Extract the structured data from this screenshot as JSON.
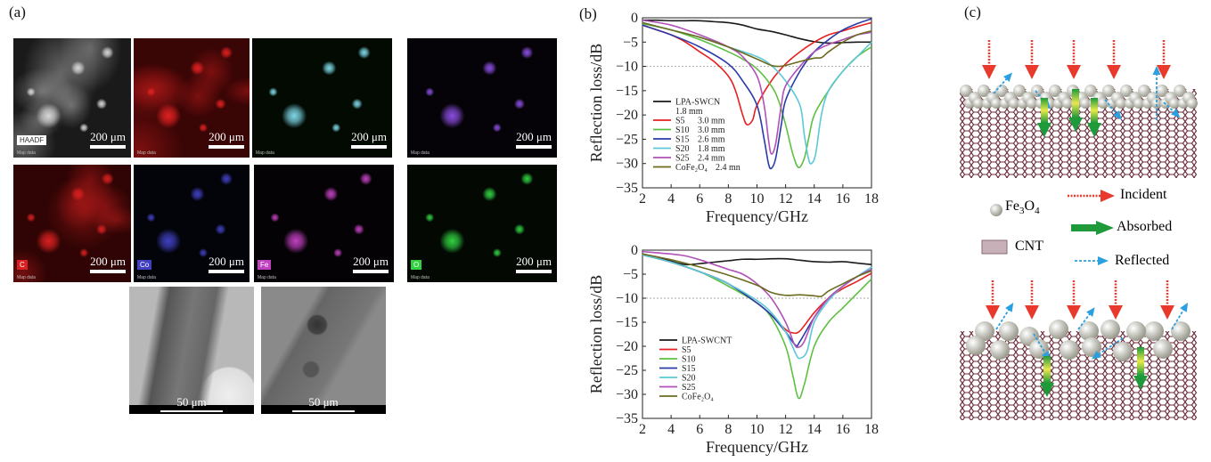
{
  "panel_a": {
    "label": "(a)",
    "maps": [
      {
        "tag": "HAADF",
        "scale": "200 μm",
        "meta": "Map data",
        "bg": "#1a1a1a",
        "color": "#d8d8d8"
      },
      {
        "tag": "",
        "scale": "200 μm",
        "meta": "Map data",
        "bg": "#3a0505",
        "color": "#e02020"
      },
      {
        "tag": "",
        "scale": "200 μm",
        "meta": "Map data",
        "bg": "#020a02",
        "color": "#7fd8e8"
      },
      {
        "tag": "",
        "scale": "200 μm",
        "meta": "Map data",
        "bg": "#050308",
        "color": "#8a4de0"
      },
      {
        "tag": "C",
        "scale": "200 μm",
        "meta": "Map data",
        "bg": "#300404",
        "color": "#d82020"
      },
      {
        "tag": "Co",
        "scale": "200 μm",
        "meta": "Map data",
        "bg": "#03030a",
        "color": "#4040c0"
      },
      {
        "tag": "Fe",
        "scale": "200 μm",
        "meta": "Map data",
        "bg": "#050205",
        "color": "#c040c0"
      },
      {
        "tag": "O",
        "scale": "200 μm",
        "meta": "Map data",
        "bg": "#030803",
        "color": "#30d040"
      }
    ],
    "tem": [
      {
        "scale": "50 μm"
      },
      {
        "scale": "50 μm"
      }
    ]
  },
  "panel_b": {
    "label": "(b)"
  },
  "panel_c": {
    "label": "(c)",
    "legend": {
      "fe3o4": "Fe3O4",
      "cnt": "CNT",
      "incident": "Incident",
      "absorbed": "Absorbed",
      "reflected": "Reflected"
    },
    "colors": {
      "incident": "#e8392c",
      "absorbed": "#1e9a3a",
      "reflected": "#2aa0e0"
    }
  },
  "chart_data": [
    {
      "type": "line",
      "xlabel": "Frequency/GHz",
      "ylabel": "Reflection loss/dB",
      "xlim": [
        2,
        18
      ],
      "ylim": [
        -35,
        0
      ],
      "xticks": [
        2,
        4,
        6,
        8,
        10,
        12,
        14,
        16,
        18
      ],
      "yticks": [
        0,
        -5,
        -10,
        -15,
        -20,
        -25,
        -30,
        -35
      ],
      "reference_line": -10,
      "legend_position": "lower-left",
      "series": [
        {
          "name": "LPA-SWCN",
          "thickness": "1.8 mm",
          "color": "#1a1a1a",
          "x": [
            2,
            3,
            4,
            5,
            6,
            7,
            8,
            9,
            10,
            11,
            12,
            13,
            14,
            15,
            16,
            17,
            18
          ],
          "y": [
            -0.5,
            -0.5,
            -0.6,
            -0.6,
            -0.6,
            -0.8,
            -1.0,
            -1.5,
            -2.3,
            -2.8,
            -3.5,
            -4.3,
            -4.9,
            -5.2,
            -5.1,
            -5.0,
            -5.0
          ]
        },
        {
          "name": "S5",
          "thickness": "3.0 mm",
          "color": "#e82020",
          "x": [
            2,
            3,
            4,
            5,
            6,
            7,
            8,
            8.5,
            9,
            9.3,
            9.7,
            10,
            11,
            12,
            13,
            14,
            15,
            16,
            17,
            18
          ],
          "y": [
            -1.5,
            -2.5,
            -3.5,
            -5,
            -7,
            -9,
            -12,
            -15,
            -20,
            -22,
            -21,
            -18,
            -13,
            -9.5,
            -7,
            -5,
            -3.5,
            -2.7,
            -1.8,
            -1
          ]
        },
        {
          "name": "S10",
          "thickness": "3.0 mm",
          "color": "#5cc040",
          "x": [
            2,
            4,
            6,
            8,
            9,
            10,
            11,
            11.5,
            12,
            12.5,
            12.9,
            13.3,
            13.6,
            14,
            15,
            16,
            17,
            18
          ],
          "y": [
            -1.2,
            -2.5,
            -4.5,
            -7,
            -8.5,
            -10.5,
            -14,
            -17,
            -22,
            -28,
            -30.8,
            -29,
            -25,
            -20,
            -15,
            -11,
            -8,
            -6
          ]
        },
        {
          "name": "S15",
          "thickness": "2.6 mm",
          "color": "#2a3aa8",
          "x": [
            2,
            4,
            6,
            8,
            9,
            10,
            10.5,
            10.8,
            11,
            11.3,
            11.7,
            12,
            13,
            14,
            15,
            16,
            17,
            18
          ],
          "y": [
            -1.5,
            -3.5,
            -6,
            -9.5,
            -13,
            -18,
            -25,
            -30,
            -31,
            -29,
            -22,
            -17,
            -11,
            -7,
            -4.5,
            -2.5,
            -1.2,
            -0.2
          ]
        },
        {
          "name": "S20",
          "thickness": "1.8 mm",
          "color": "#5cc8d8",
          "x": [
            2,
            4,
            6,
            8,
            10,
            11,
            12,
            13,
            13.3,
            13.6,
            13.8,
            14.1,
            14.5,
            15,
            16,
            17,
            18
          ],
          "y": [
            -1,
            -2.5,
            -4,
            -6,
            -8,
            -9.8,
            -13,
            -18,
            -24,
            -29,
            -30,
            -28,
            -20,
            -15,
            -11,
            -8,
            -5
          ]
        },
        {
          "name": "S25",
          "thickness": "2.4 mm",
          "color": "#b050b8",
          "x": [
            2,
            4,
            6,
            8,
            9,
            10,
            10.5,
            10.8,
            11,
            11.3,
            11.7,
            12,
            13,
            14,
            15,
            16,
            17,
            18
          ],
          "y": [
            -0.5,
            -1.5,
            -3.5,
            -6,
            -8,
            -12,
            -18,
            -25,
            -28,
            -26,
            -18,
            -14,
            -10,
            -7,
            -5.5,
            -4.5,
            -3.5,
            -3
          ]
        },
        {
          "name": "CoFe2O4",
          "thickness": "2.4 mn",
          "color": "#6b6a1e",
          "x": [
            2,
            4,
            6,
            8,
            10,
            11,
            11.5,
            12,
            13,
            14,
            14.5,
            15,
            16,
            17,
            18
          ],
          "y": [
            -1,
            -2.5,
            -4,
            -6,
            -8.5,
            -9.8,
            -10,
            -9.8,
            -9,
            -8.3,
            -8.2,
            -7,
            -5,
            -3.5,
            -2.7
          ]
        }
      ]
    },
    {
      "type": "line",
      "xlabel": "Frequency/GHz",
      "ylabel": "Reflection loss/dB",
      "xlim": [
        2,
        18
      ],
      "ylim": [
        -35,
        0
      ],
      "xticks": [
        2,
        4,
        6,
        8,
        10,
        12,
        14,
        16,
        18
      ],
      "yticks": [
        0,
        -5,
        -10,
        -15,
        -20,
        -25,
        -30,
        -35
      ],
      "reference_line": -10,
      "legend_position": "lower-left",
      "series": [
        {
          "name": "LPA-SWCNT",
          "color": "#1a1a1a",
          "x": [
            2,
            3,
            4,
            5,
            6,
            7,
            8,
            9,
            10,
            11,
            12,
            13,
            14,
            15,
            16,
            17,
            18
          ],
          "y": [
            -0.8,
            -1.5,
            -2.3,
            -3,
            -2.8,
            -2.5,
            -2.2,
            -1.9,
            -1.9,
            -1.8,
            -1.8,
            -2.1,
            -2.4,
            -2.5,
            -2.4,
            -2.7,
            -3
          ]
        },
        {
          "name": "S5",
          "color": "#e82020",
          "x": [
            2,
            4,
            6,
            8,
            10,
            11,
            12,
            12.5,
            13,
            14,
            15,
            16,
            17,
            18
          ],
          "y": [
            -0.8,
            -2.5,
            -4.5,
            -7,
            -11,
            -13.5,
            -16.5,
            -17.2,
            -16.8,
            -13,
            -10,
            -8,
            -6.5,
            -4.8
          ]
        },
        {
          "name": "S10",
          "color": "#5cc040",
          "x": [
            2,
            4,
            6,
            8,
            10,
            11,
            12,
            12.5,
            12.9,
            13.3,
            14,
            15,
            16,
            17,
            18
          ],
          "y": [
            -1,
            -2.5,
            -4.5,
            -7.5,
            -11,
            -14,
            -20,
            -26,
            -30.8,
            -28,
            -20,
            -15,
            -12,
            -9,
            -6
          ]
        },
        {
          "name": "S15",
          "color": "#2a3aa8",
          "x": [
            2,
            4,
            6,
            8,
            10,
            11,
            12,
            12.7,
            13,
            14,
            15,
            16,
            17,
            18
          ],
          "y": [
            -1,
            -2.5,
            -4.5,
            -7,
            -11,
            -13.5,
            -17,
            -19.8,
            -19,
            -14,
            -10,
            -7.5,
            -5.5,
            -4
          ]
        },
        {
          "name": "S20",
          "color": "#5cc8d8",
          "x": [
            2,
            4,
            6,
            8,
            10,
            11,
            12,
            12.7,
            13,
            13.5,
            14,
            15,
            16,
            17,
            18
          ],
          "y": [
            -1,
            -2.5,
            -4.5,
            -7,
            -10.5,
            -13,
            -17,
            -21.5,
            -22.5,
            -21,
            -15,
            -10.5,
            -7.5,
            -5.5,
            -3.5
          ]
        },
        {
          "name": "S25",
          "color": "#b050b8",
          "x": [
            2,
            4,
            5,
            6,
            7,
            8,
            9,
            10,
            11,
            12,
            12.6,
            12.9,
            13.3,
            14,
            15,
            16,
            17,
            18
          ],
          "y": [
            -0.3,
            -0.8,
            -1.2,
            -2,
            -3,
            -4,
            -5,
            -7,
            -10,
            -15,
            -19.5,
            -20.2,
            -19,
            -14,
            -10,
            -7.5,
            -5.5,
            -4
          ]
        },
        {
          "name": "CoFe2O4",
          "color": "#6b6a1e",
          "x": [
            2,
            4,
            6,
            8,
            10,
            11,
            12,
            13,
            14,
            14.5,
            15,
            16,
            17,
            18
          ],
          "y": [
            -0.8,
            -2,
            -3.5,
            -5.2,
            -7.3,
            -8.8,
            -9.4,
            -9.3,
            -9.5,
            -9.6,
            -8.5,
            -7,
            -5.5,
            -4.3
          ]
        }
      ]
    }
  ]
}
